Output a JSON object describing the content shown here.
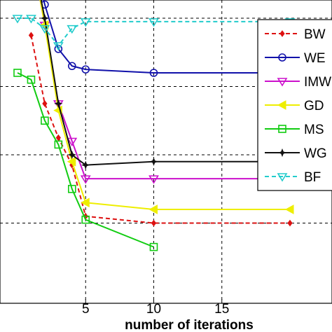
{
  "chart_data": {
    "type": "line",
    "xlabel": "number of iterations",
    "ylabel": "",
    "title": "",
    "xlim": [
      0,
      20
    ],
    "ylim": [
      0,
      5
    ],
    "x_ticks": [
      5,
      10,
      15
    ],
    "y_grid": [
      1,
      2,
      3,
      4
    ],
    "grid": true,
    "legend_position": "top-right",
    "series": [
      {
        "name": "BW",
        "color": "#dd1111",
        "dash": "6,4",
        "marker": "diamond",
        "x": [
          1,
          2,
          3,
          4,
          5,
          10,
          20
        ],
        "y": [
          3.75,
          2.75,
          2.25,
          1.85,
          1.1,
          1.0,
          1.0
        ]
      },
      {
        "name": "WE",
        "color": "#1111aa",
        "dash": "",
        "marker": "circle",
        "x": [
          0,
          1,
          2,
          3,
          4,
          5,
          10,
          20
        ],
        "y": [
          5.2,
          5.0,
          4.2,
          3.55,
          3.3,
          3.25,
          3.2,
          3.2
        ]
      },
      {
        "name": "IMW",
        "color": "#cc11cc",
        "dash": "",
        "marker": "triangle-down",
        "x": [
          0,
          1,
          2,
          3,
          4,
          5,
          10,
          20
        ],
        "y": [
          5.2,
          5.0,
          3.9,
          2.75,
          2.2,
          1.65,
          1.65,
          1.65
        ]
      },
      {
        "name": "GD",
        "color": "#eeee00",
        "dash": "",
        "marker": "triangle-left",
        "x": [
          0,
          1,
          2,
          3,
          4,
          5,
          10,
          20
        ],
        "y": [
          5.2,
          5.0,
          3.9,
          2.65,
          1.9,
          1.3,
          1.2,
          1.2
        ]
      },
      {
        "name": "MS",
        "color": "#11cc11",
        "dash": "",
        "marker": "square",
        "x": [
          0,
          1,
          2,
          3,
          4,
          5,
          10
        ],
        "y": [
          3.2,
          3.1,
          2.5,
          2.15,
          1.5,
          1.05,
          0.65
        ]
      },
      {
        "name": "WG",
        "color": "#111111",
        "dash": "",
        "marker": "star",
        "x": [
          0,
          1,
          2,
          3,
          4,
          5,
          10,
          20
        ],
        "y": [
          5.2,
          5.0,
          4.0,
          2.75,
          2.0,
          1.85,
          1.9,
          1.9
        ]
      },
      {
        "name": "BF",
        "color": "#22cccc",
        "dash": "6,4",
        "marker": "triangle-down",
        "x": [
          0,
          1,
          2,
          3,
          4,
          5,
          10,
          20
        ],
        "y": [
          4.0,
          4.0,
          3.85,
          3.6,
          3.85,
          3.95,
          3.95,
          3.95
        ]
      }
    ]
  }
}
